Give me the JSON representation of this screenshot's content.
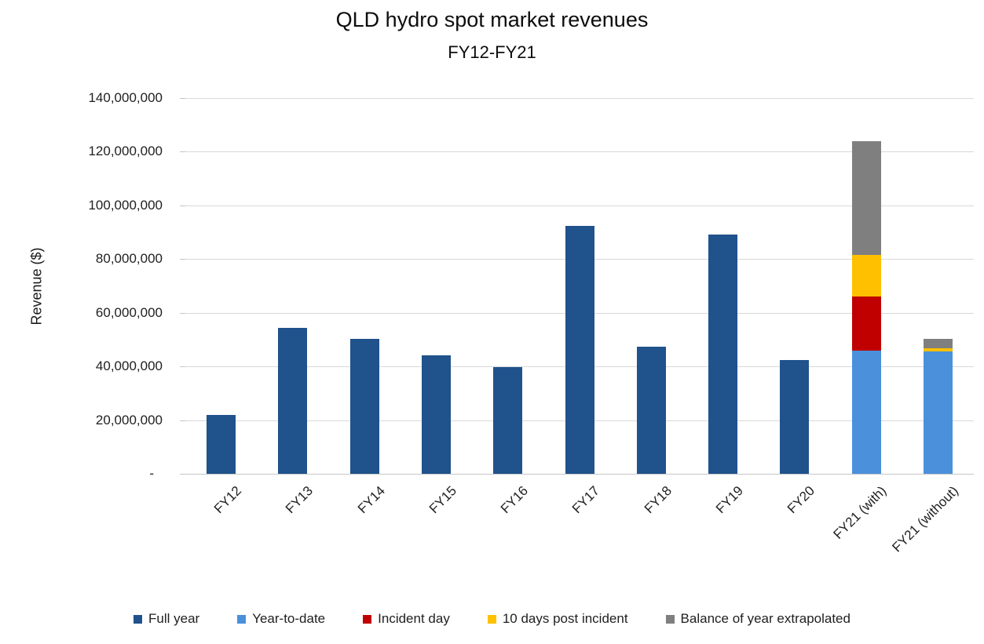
{
  "page": {
    "title": "QLD hydro spot market revenues",
    "subtitle": "FY12-FY21"
  },
  "chart_data": {
    "type": "bar",
    "stacked": true,
    "title": "QLD hydro spot market revenues",
    "subtitle": "FY12-FY21",
    "xlabel": "",
    "ylabel": "Revenue ($)",
    "ylim": [
      0,
      140000000
    ],
    "grid": true,
    "legend_position": "bottom",
    "yticks": [
      {
        "label": "140,000,000",
        "value": 140000000
      },
      {
        "label": "120,000,000",
        "value": 120000000
      },
      {
        "label": "100,000,000",
        "value": 100000000
      },
      {
        "label": "80,000,000",
        "value": 80000000
      },
      {
        "label": "60,000,000",
        "value": 60000000
      },
      {
        "label": "40,000,000",
        "value": 40000000
      },
      {
        "label": "20,000,000",
        "value": 20000000
      },
      {
        "label": "-",
        "value": 0
      }
    ],
    "series": [
      {
        "name": "Full year",
        "color": "#20528C"
      },
      {
        "name": "Year-to-date",
        "color": "#4A90DB"
      },
      {
        "name": "Incident day",
        "color": "#C00000"
      },
      {
        "name": "10 days post incident",
        "color": "#FFC000"
      },
      {
        "name": "Balance of year extrapolated",
        "color": "#7F7F7F"
      }
    ],
    "categories": [
      "FY12",
      "FY13",
      "FY14",
      "FY15",
      "FY16",
      "FY17",
      "FY18",
      "FY19",
      "FY20",
      "FY21 (with)",
      "FY21 (without)"
    ],
    "values": [
      {
        "Full year": 22000000
      },
      {
        "Full year": 54500000
      },
      {
        "Full year": 50400000
      },
      {
        "Full year": 44200000
      },
      {
        "Full year": 39800000
      },
      {
        "Full year": 92500000
      },
      {
        "Full year": 47400000
      },
      {
        "Full year": 89000000
      },
      {
        "Full year": 42300000
      },
      {
        "Year-to-date": 46000000,
        "Incident day": 20000000,
        "10 days post incident": 15500000,
        "Balance of year extrapolated": 42500000
      },
      {
        "Year-to-date": 45700000,
        "10 days post incident": 1200000,
        "Balance of year extrapolated": 3400000
      }
    ],
    "colors": {
      "full_year": "#20528C",
      "year_to_date": "#4A90DB",
      "incident_day": "#C00000",
      "ten_days_post_incident": "#FFC000",
      "balance_of_year": "#7F7F7F",
      "gridline": "#D9D9D9"
    }
  }
}
